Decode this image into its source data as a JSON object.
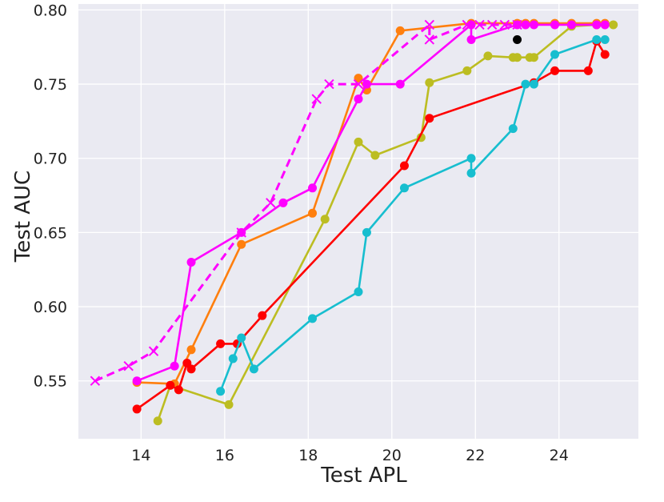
{
  "chart_data": {
    "type": "line",
    "title": "",
    "xlabel": "Test APL",
    "ylabel": "Test AUC",
    "xlim": [
      12.5,
      25.9
    ],
    "ylim": [
      0.511,
      0.804
    ],
    "xticks": [
      14,
      16,
      18,
      20,
      22,
      24
    ],
    "yticks": [
      0.55,
      0.6,
      0.65,
      0.7,
      0.75,
      0.8
    ],
    "xtick_labels": [
      "14",
      "16",
      "18",
      "20",
      "22",
      "24"
    ],
    "ytick_labels": [
      "0.55",
      "0.60",
      "0.65",
      "0.70",
      "0.75",
      "0.80"
    ],
    "background": "#eaeaf2",
    "grid": true,
    "legend": "none",
    "series": [
      {
        "color": "#ff7f0e",
        "marker": "circle",
        "dashed": false,
        "points": [
          [
            13.9,
            0.549
          ],
          [
            14.8,
            0.548
          ],
          [
            15.2,
            0.571
          ],
          [
            16.4,
            0.642
          ],
          [
            18.1,
            0.663
          ],
          [
            19.2,
            0.754
          ],
          [
            19.4,
            0.746
          ],
          [
            20.2,
            0.786
          ],
          [
            21.9,
            0.791
          ],
          [
            23.0,
            0.791
          ],
          [
            23.2,
            0.791
          ],
          [
            23.4,
            0.791
          ],
          [
            23.9,
            0.791
          ],
          [
            24.3,
            0.791
          ],
          [
            24.9,
            0.791
          ],
          [
            25.1,
            0.791
          ]
        ]
      },
      {
        "color": "#bcbd22",
        "marker": "circle",
        "dashed": false,
        "points": [
          [
            14.4,
            0.523
          ],
          [
            14.7,
            0.547
          ],
          [
            16.1,
            0.534
          ],
          [
            18.4,
            0.659
          ],
          [
            19.2,
            0.711
          ],
          [
            19.6,
            0.702
          ],
          [
            20.7,
            0.714
          ],
          [
            20.9,
            0.751
          ],
          [
            21.8,
            0.759
          ],
          [
            22.3,
            0.769
          ],
          [
            22.9,
            0.768
          ],
          [
            23.0,
            0.768
          ],
          [
            23.3,
            0.768
          ],
          [
            23.4,
            0.768
          ],
          [
            24.3,
            0.789
          ],
          [
            24.9,
            0.79
          ],
          [
            25.3,
            0.79
          ]
        ]
      },
      {
        "color": "#ff0000",
        "marker": "circle",
        "dashed": false,
        "points": [
          [
            13.9,
            0.531
          ],
          [
            14.7,
            0.547
          ],
          [
            14.9,
            0.544
          ],
          [
            15.1,
            0.562
          ],
          [
            15.2,
            0.558
          ],
          [
            15.9,
            0.575
          ],
          [
            16.3,
            0.575
          ],
          [
            16.9,
            0.594
          ],
          [
            20.3,
            0.695
          ],
          [
            20.9,
            0.727
          ],
          [
            23.4,
            0.751
          ],
          [
            23.9,
            0.759
          ],
          [
            24.7,
            0.759
          ],
          [
            24.9,
            0.779
          ],
          [
            25.1,
            0.77
          ]
        ]
      },
      {
        "color": "#17becf",
        "marker": "circle",
        "dashed": false,
        "points": [
          [
            15.9,
            0.543
          ],
          [
            16.2,
            0.565
          ],
          [
            16.4,
            0.579
          ],
          [
            16.7,
            0.558
          ],
          [
            18.1,
            0.592
          ],
          [
            19.2,
            0.61
          ],
          [
            19.4,
            0.65
          ],
          [
            20.3,
            0.68
          ],
          [
            21.9,
            0.7
          ],
          [
            21.9,
            0.69
          ],
          [
            22.9,
            0.72
          ],
          [
            23.2,
            0.75
          ],
          [
            23.4,
            0.75
          ],
          [
            23.9,
            0.77
          ],
          [
            24.9,
            0.78
          ],
          [
            25.1,
            0.78
          ]
        ]
      },
      {
        "color": "#ff00ff",
        "marker": "circle",
        "dashed": false,
        "points": [
          [
            13.9,
            0.55
          ],
          [
            14.8,
            0.56
          ],
          [
            15.2,
            0.63
          ],
          [
            16.4,
            0.65
          ],
          [
            17.4,
            0.67
          ],
          [
            18.1,
            0.68
          ],
          [
            19.2,
            0.74
          ],
          [
            19.4,
            0.75
          ],
          [
            20.2,
            0.75
          ],
          [
            21.9,
            0.79
          ],
          [
            21.9,
            0.78
          ],
          [
            23.0,
            0.79
          ],
          [
            23.2,
            0.79
          ],
          [
            23.4,
            0.79
          ],
          [
            23.9,
            0.79
          ],
          [
            24.3,
            0.79
          ],
          [
            24.9,
            0.79
          ],
          [
            25.1,
            0.79
          ]
        ]
      },
      {
        "color": "#ff00ff",
        "marker": "x",
        "dashed": true,
        "points": [
          [
            12.9,
            0.55
          ],
          [
            13.7,
            0.56
          ],
          [
            14.3,
            0.57
          ],
          [
            16.4,
            0.65
          ],
          [
            17.1,
            0.67
          ],
          [
            18.2,
            0.74
          ],
          [
            18.5,
            0.75
          ],
          [
            19.2,
            0.75
          ],
          [
            20.9,
            0.79
          ],
          [
            20.9,
            0.78
          ],
          [
            21.8,
            0.79
          ],
          [
            22.1,
            0.79
          ],
          [
            22.4,
            0.79
          ],
          [
            22.7,
            0.79
          ],
          [
            23.0,
            0.79
          ]
        ]
      },
      {
        "color": "#000000",
        "marker": "circle",
        "dashed": false,
        "points": [
          [
            23.0,
            0.78
          ]
        ]
      }
    ]
  }
}
